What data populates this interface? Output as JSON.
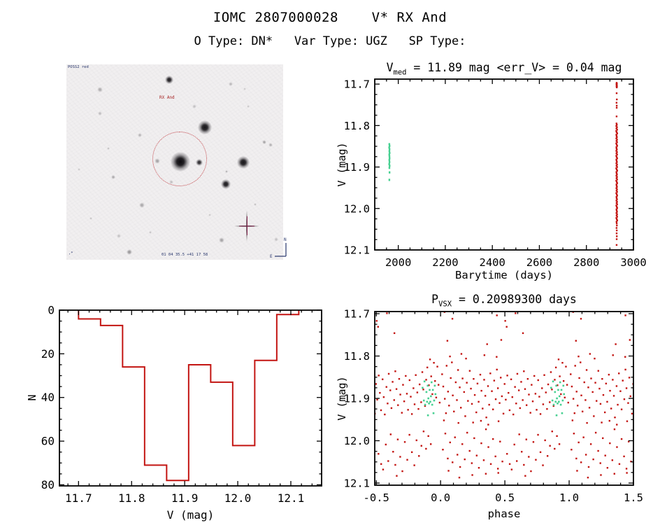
{
  "page": {
    "title": "IOMC 2807000028    V* RX And",
    "subtitle": "O Type: DN*   Var Type: UGZ   SP Type:"
  },
  "finder": {
    "survey_label": "POSS2 red",
    "target_label": "RX And",
    "coords_label": "01 04 35.5  +41 17 58",
    "corner_label": ",*",
    "compass_n": "N",
    "compass_e": "E",
    "marker_color": "#8c2350",
    "circle_color": "#be3237",
    "stars": [
      [
        147,
        22,
        4,
        0.92
      ],
      [
        198,
        90,
        6.5,
        0.95
      ],
      [
        163,
        139,
        9,
        1.0
      ],
      [
        190,
        140,
        3,
        0.85
      ],
      [
        130,
        138,
        2.5,
        0.32
      ],
      [
        253,
        140,
        5.5,
        0.95
      ],
      [
        228,
        171,
        4.5,
        0.93
      ],
      [
        229,
        153,
        1.6,
        0.28
      ],
      [
        48,
        36,
        2.5,
        0.28
      ],
      [
        48,
        70,
        2,
        0.22
      ],
      [
        105,
        101,
        2.2,
        0.26
      ],
      [
        67,
        161,
        2.2,
        0.3
      ],
      [
        150,
        168,
        2,
        0.2
      ],
      [
        108,
        201,
        2.5,
        0.3
      ],
      [
        222,
        251,
        2.5,
        0.32
      ],
      [
        90,
        268,
        2.6,
        0.38
      ],
      [
        283,
        111,
        2.2,
        0.32
      ],
      [
        292,
        115,
        2,
        0.26
      ],
      [
        183,
        60,
        2,
        0.2
      ],
      [
        235,
        28,
        2,
        0.24
      ],
      [
        60,
        120,
        1.6,
        0.2
      ],
      [
        270,
        200,
        1.6,
        0.2
      ],
      [
        120,
        240,
        1.6,
        0.2
      ],
      [
        35,
        220,
        1.6,
        0.18
      ],
      [
        260,
        60,
        1.6,
        0.18
      ],
      [
        18,
        150,
        1.6,
        0.16
      ],
      [
        300,
        250,
        1.8,
        0.2
      ],
      [
        75,
        245,
        1.8,
        0.2
      ],
      [
        205,
        215,
        1.6,
        0.18
      ],
      [
        255,
        35,
        1.5,
        0.16
      ]
    ]
  },
  "chart_data": [
    {
      "id": "timeseries",
      "type": "scatter",
      "title": {
        "pre": "V",
        "sub": "med",
        "rest": " = 11.89 mag <err_V> = 0.04 mag"
      },
      "v_median": 11.89,
      "v_err_mean": 0.04,
      "xlabel": "Barytime (days)",
      "ylabel": "V (mag)",
      "xlim": [
        1900,
        3000
      ],
      "ylim": [
        11.688,
        12.1
      ],
      "xticks": {
        "v": [
          2000,
          2200,
          2400,
          2600,
          2800,
          3000
        ],
        "labels": [
          "2000",
          "2200",
          "2400",
          "2600",
          "2800",
          "3000"
        ],
        "minor": 50
      },
      "yticks": {
        "v": [
          11.7,
          11.8,
          11.9,
          12.0,
          12.1
        ],
        "labels": [
          "11.7",
          "11.8",
          "11.9",
          "12.0",
          "12.1"
        ],
        "minor": 0.025
      },
      "series": [
        {
          "name": "omc-measurements",
          "color": "#c31512",
          "w": 2.4,
          "h": 2.4,
          "tv": [
            2928.5,
            11.697,
            2929.5,
            11.699,
            2928.0,
            11.7,
            2929.0,
            11.702,
            2928.7,
            11.703,
            2929.8,
            11.705,
            2928.3,
            11.706,
            2929.2,
            11.708,
            2928.6,
            11.722,
            2929.4,
            11.737,
            2928.2,
            11.745,
            2929.0,
            11.752,
            2928.8,
            11.757,
            2928.4,
            11.778,
            2928.0,
            11.795,
            2929.3,
            11.798,
            2927.1,
            11.801,
            2930.0,
            11.804,
            2927.7,
            11.807,
            2930.6,
            11.81,
            2926.9,
            11.813,
            2928.6,
            11.816,
            2931.0,
            11.819,
            2927.4,
            11.822,
            2928.2,
            11.825,
            2929.6,
            11.828,
            2927.3,
            11.831,
            2930.2,
            11.834,
            2927.9,
            11.837,
            2930.4,
            11.84,
            2927.0,
            11.843,
            2928.8,
            11.846,
            2930.9,
            11.849,
            2927.6,
            11.852,
            2928.1,
            11.855,
            2929.4,
            11.858,
            2927.2,
            11.861,
            2930.1,
            11.864,
            2927.8,
            11.867,
            2930.5,
            11.87,
            2927.1,
            11.873,
            2928.7,
            11.876,
            2930.8,
            11.879,
            2927.5,
            11.882,
            2928.3,
            11.885,
            2929.7,
            11.888,
            2927.4,
            11.891,
            2930.3,
            11.894,
            2928.0,
            11.897,
            2930.7,
            11.9,
            2926.9,
            11.903,
            2928.9,
            11.906,
            2931.0,
            11.909,
            2927.7,
            11.912,
            2928.4,
            11.915,
            2929.8,
            11.918,
            2927.5,
            11.921,
            2930.2,
            11.924,
            2928.1,
            11.927,
            2930.6,
            11.93,
            2927.0,
            11.933,
            2929.0,
            11.936,
            2930.9,
            11.939,
            2927.8,
            11.942,
            2928.5,
            11.945,
            2929.9,
            11.948,
            2927.6,
            11.951,
            2930.1,
            11.954,
            2928.2,
            11.957,
            2930.5,
            11.96,
            2927.1,
            11.963,
            2929.1,
            11.966,
            2930.8,
            11.969,
            2927.9,
            11.972,
            2928.6,
            11.975,
            2930.0,
            11.978,
            2927.7,
            11.981,
            2930.3,
            11.984,
            2928.3,
            11.987,
            2930.7,
            11.99,
            2927.2,
            11.993,
            2929.2,
            11.996,
            2930.9,
            11.999,
            2928.0,
            12.002,
            2928.7,
            12.005,
            2930.1,
            12.008,
            2927.8,
            12.011,
            2930.4,
            12.014,
            2928.4,
            12.017,
            2930.8,
            12.02,
            2927.3,
            12.023,
            2929.3,
            12.026,
            2931.0,
            12.029,
            2928.1,
            12.032,
            2928.9,
            12.036,
            2929.6,
            12.041,
            2928.2,
            12.047,
            2929.1,
            12.053,
            2928.6,
            12.06,
            2929.3,
            12.067,
            2928.8,
            12.074,
            2928.5,
            12.088
          ]
        },
        {
          "name": "highlighted-interval",
          "color": "#46d091",
          "w": 2.4,
          "h": 3.2,
          "tv": [
            1962.0,
            11.845,
            1963.0,
            11.849,
            1961.5,
            11.853,
            1962.8,
            11.857,
            1962.2,
            11.862,
            1963.3,
            11.866,
            1961.8,
            11.87,
            1962.5,
            11.874,
            1963.0,
            11.879,
            1962.0,
            11.883,
            1962.7,
            11.888,
            1961.6,
            11.893,
            1963.2,
            11.897,
            1962.3,
            11.902,
            1962.9,
            11.913,
            1962.1,
            11.931
          ]
        }
      ]
    },
    {
      "id": "histogram",
      "type": "histogram",
      "xlabel": "V (mag)",
      "ylabel": "N",
      "color": "#c31512",
      "xlim": [
        11.664,
        12.158
      ],
      "ylim": [
        0,
        80.5
      ],
      "xticks": {
        "v": [
          11.7,
          11.8,
          11.9,
          12.0,
          12.1
        ],
        "labels": [
          "11.7",
          "11.8",
          "11.9",
          "12.0",
          "12.1"
        ],
        "minor": 0.02
      },
      "yticks": {
        "v": [
          0,
          20,
          40,
          60,
          80
        ],
        "labels": [
          "0",
          "20",
          "40",
          "60",
          "80"
        ],
        "minor": 5
      },
      "bin_start": 11.7,
      "bin_width": 0.0415,
      "counts": [
        4,
        7,
        26,
        71,
        78,
        25,
        33,
        62,
        23,
        2
      ]
    },
    {
      "id": "phase",
      "type": "scatter",
      "title": {
        "pre": "P",
        "sub": "VSX",
        "rest": " = 0.20989300 days"
      },
      "period_days": 0.209893,
      "xlabel": "phase",
      "ylabel": "V (mag)",
      "xlim": [
        -0.512,
        1.5
      ],
      "ylim": [
        11.695,
        12.105
      ],
      "duplicate_period": 1,
      "xticks": {
        "v": [
          -0.5,
          0.0,
          0.5,
          1.0,
          1.5
        ],
        "labels": [
          "-0.5",
          "0.0",
          "0.5",
          "1.0",
          "1.5"
        ],
        "minor": 0.1
      },
      "yticks": {
        "v": [
          11.7,
          11.8,
          11.9,
          12.0,
          12.1
        ],
        "labels": [
          "11.7",
          "11.8",
          "11.9",
          "12.0",
          "12.1"
        ],
        "minor": 0.025
      },
      "series": [
        {
          "name": "folded-measurements",
          "color": "#c31512",
          "w": 2.4,
          "h": 2.4,
          "pv": [
            0.012,
            11.843,
            0.021,
            11.872,
            0.033,
            11.901,
            0.047,
            11.823,
            0.058,
            11.884,
            0.066,
            11.917,
            0.079,
            11.852,
            0.095,
            11.893,
            0.104,
            11.931,
            0.118,
            11.862,
            0.127,
            11.904,
            0.136,
            11.833,
            0.149,
            11.874,
            0.158,
            11.922,
            0.171,
            11.853,
            0.183,
            11.885,
            0.192,
            11.942,
            0.204,
            11.863,
            0.213,
            11.906,
            0.227,
            11.835,
            0.236,
            11.877,
            0.244,
            11.913,
            0.257,
            11.854,
            0.266,
            11.892,
            0.278,
            11.933,
            0.287,
            11.865,
            0.296,
            11.908,
            0.309,
            11.844,
            0.318,
            11.882,
            0.327,
            11.924,
            0.339,
            11.856,
            0.348,
            11.894,
            0.356,
            11.945,
            0.369,
            11.871,
            0.378,
            11.915,
            0.387,
            11.841,
            0.399,
            11.883,
            0.408,
            11.926,
            0.417,
            11.858,
            0.429,
            11.902,
            0.438,
            11.832,
            0.446,
            11.876,
            0.459,
            11.911,
            0.468,
            11.851,
            0.477,
            11.895,
            0.489,
            11.936,
            0.498,
            11.866,
            0.507,
            11.903,
            0.519,
            11.846,
            0.528,
            11.887,
            0.537,
            11.928,
            0.549,
            11.855,
            0.558,
            11.897,
            0.566,
            11.938,
            0.579,
            11.873,
            0.588,
            11.912,
            0.597,
            11.842,
            0.609,
            11.881,
            0.618,
            11.923,
            0.627,
            11.861,
            0.639,
            11.904,
            0.648,
            11.836,
            0.657,
            11.878,
            0.669,
            11.916,
            0.678,
            11.854,
            0.687,
            11.891,
            0.699,
            11.934,
            0.708,
            11.868,
            0.717,
            11.907,
            0.729,
            11.847,
            0.738,
            11.889,
            0.747,
            11.927,
            0.759,
            11.857,
            0.768,
            11.896,
            0.777,
            11.937,
            0.789,
            11.876,
            0.798,
            11.914,
            0.807,
            11.845,
            0.819,
            11.886,
            0.828,
            11.925,
            0.837,
            11.867,
            0.849,
            11.909,
            0.858,
            11.838,
            0.866,
            11.879,
            0.879,
            11.918,
            0.888,
            11.856,
            0.897,
            11.827,
            0.909,
            11.869,
            0.918,
            11.808,
            0.927,
            11.848,
            0.936,
            11.89,
            0.948,
            11.816,
            0.957,
            11.859,
            0.966,
            11.898,
            0.975,
            11.825,
            0.984,
            11.868,
            0.993,
            11.91,
            0.042,
            11.935,
            0.088,
            11.815,
            0.139,
            11.958,
            0.253,
            11.957,
            0.341,
            11.798,
            0.451,
            11.954,
            0.073,
            11.801,
            0.162,
            11.795,
            0.371,
            11.962,
            0.026,
            11.952,
            0.198,
            11.806,
            0.314,
            11.953,
            0.436,
            11.802,
            0.018,
            12.021,
            0.037,
            11.983,
            0.056,
            12.042,
            0.074,
            12.004,
            0.093,
            12.051,
            0.112,
            11.992,
            0.131,
            12.033,
            0.152,
            12.062,
            0.169,
            12.008,
            0.188,
            12.044,
            0.207,
            11.981,
            0.226,
            12.024,
            0.243,
            12.053,
            0.262,
            11.994,
            0.281,
            12.035,
            0.298,
            12.064,
            0.317,
            12.006,
            0.336,
            12.046,
            0.353,
            11.973,
            0.372,
            12.015,
            0.391,
            12.055,
            0.408,
            11.996,
            0.427,
            12.037,
            0.446,
            12.066,
            0.463,
            12.002,
            0.574,
            12.009,
            0.593,
            12.048,
            0.612,
            11.985,
            0.631,
            12.026,
            0.648,
            12.057,
            0.667,
            11.997,
            0.686,
            12.038,
            0.703,
            12.072,
            0.722,
            12.003,
            0.741,
            12.045,
            0.758,
            11.986,
            0.777,
            12.027,
            0.796,
            12.058,
            0.813,
            11.999,
            0.832,
            12.036,
            0.851,
            12.012,
            0.868,
            11.978,
            0.887,
            12.019,
            0.247,
            12.081,
            0.449,
            12.076,
            0.659,
            12.083,
            0.146,
            12.087,
            0.352,
            12.078,
            0.553,
            12.068,
            0.062,
            12.071,
            0.481,
            12.049,
            0.517,
            12.031,
            0.538,
            12.055,
            0.905,
            11.989,
            0.924,
            12.008,
            0.031,
            11.696,
            0.092,
            11.712,
            0.438,
            11.704,
            0.472,
            11.762,
            0.503,
            11.717,
            0.514,
            11.731,
            0.641,
            11.746,
            0.053,
            11.764,
            0.583,
            11.699,
            0.362,
            11.772
          ]
        },
        {
          "name": "folded-highlighted",
          "color": "#46d091",
          "w": 2.6,
          "h": 2.6,
          "pv": [
            0.86,
            11.875,
            0.875,
            11.86,
            0.89,
            11.885,
            0.9,
            11.87,
            0.905,
            11.9,
            0.915,
            11.88,
            0.925,
            11.895,
            0.93,
            11.862,
            0.94,
            11.88,
            0.95,
            11.905,
            0.955,
            11.87,
            0.96,
            11.89,
            0.87,
            11.905,
            0.88,
            11.915,
            0.895,
            11.908,
            0.91,
            11.912,
            0.92,
            11.908,
            0.935,
            11.915,
            0.945,
            11.935,
            0.902,
            11.94
          ]
        }
      ]
    }
  ]
}
